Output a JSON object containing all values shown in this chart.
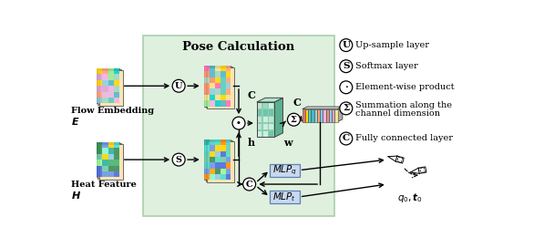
{
  "title": "Pose Calculation",
  "bg_box_color": "#dff0de",
  "bg_box_edge": "#aacfaa",
  "legend_items": [
    {
      "symbol": "U",
      "text": "Up-sample layer"
    },
    {
      "symbol": "S",
      "text": "Softmax layer"
    },
    {
      "symbol": "·",
      "text": "Element-wise product"
    },
    {
      "symbol": "Σ",
      "text": "Summation along the\nchannel dimension"
    },
    {
      "symbol": "C",
      "text": "Fully connected layer"
    }
  ],
  "flow_label1": "Flow Embedding",
  "flow_label2": "E",
  "heat_label1": "Heat Feature",
  "heat_label2": "H",
  "mlp_q_label": "$MLP_q$",
  "mlp_t_label": "$MLP_t$",
  "pose_label": "$q_0, \\boldsymbol{t}_0$"
}
